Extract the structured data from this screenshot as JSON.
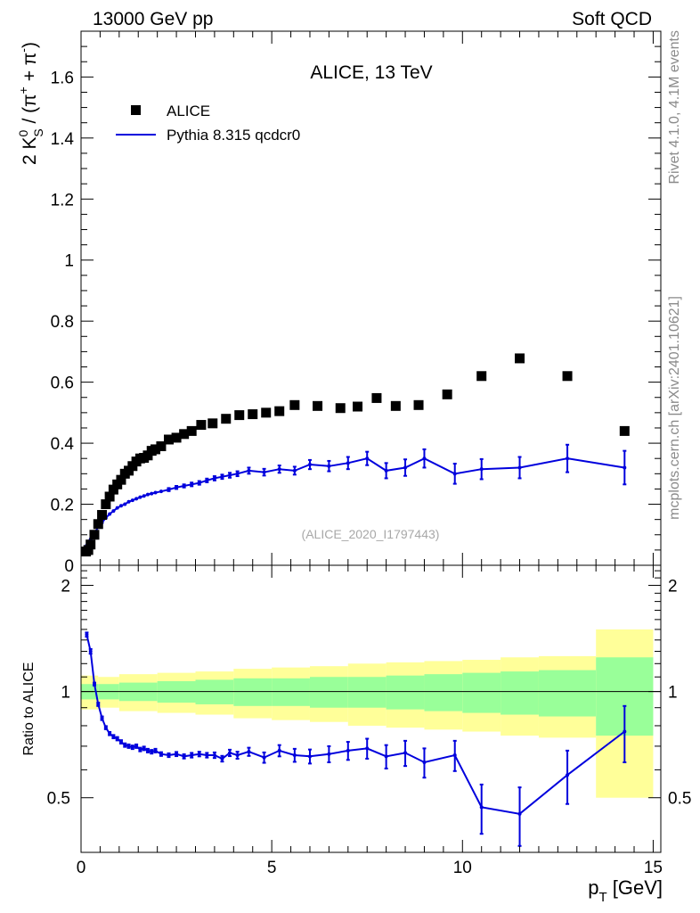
{
  "header": {
    "left": "13000 GeV pp",
    "right": "Soft QCD"
  },
  "side_labels": {
    "rivet": "Rivet 4.1.0,  4.1M events",
    "mcplots": "mcplots.cern.ch [arXiv:2401.10621]"
  },
  "chart_data": {
    "type": "scatter",
    "title": "ALICE, 13 TeV",
    "analysis_id": "(ALICE_2020_I1797443)",
    "ylabel_parts": [
      "2 K",
      "0",
      "S",
      " / (π",
      "+",
      " + π",
      "-",
      ")"
    ],
    "xlabel_parts": [
      "p",
      "T",
      " [GeV]"
    ],
    "xlim": [
      0,
      15.2
    ],
    "ylim": [
      0,
      1.75
    ],
    "x_ticks": [
      0,
      5,
      10,
      15
    ],
    "y_ticks": [
      0,
      0.2,
      0.4,
      0.6,
      0.8,
      1,
      1.2,
      1.4,
      1.6
    ],
    "y_tick_labels": [
      "0",
      "0.2",
      "0.4",
      "0.6",
      "0.8",
      "1",
      "1.2",
      "1.4",
      "1.6"
    ],
    "legend": [
      {
        "label": "ALICE",
        "color": "#000000",
        "marker": "square"
      },
      {
        "label": "Pythia 8.315 qcdcr0",
        "color": "#0000dd",
        "marker": "line"
      }
    ],
    "data_x": [
      0.13,
      0.19,
      0.25,
      0.35,
      0.45,
      0.55,
      0.65,
      0.75,
      0.85,
      0.95,
      1.05,
      1.15,
      1.25,
      1.35,
      1.45,
      1.55,
      1.65,
      1.75,
      1.85,
      1.95,
      2.1,
      2.3,
      2.5,
      2.7,
      2.9,
      3.15,
      3.45,
      3.8,
      4.15,
      4.5,
      4.85,
      5.2,
      5.6,
      6.2,
      6.8,
      7.25,
      7.75,
      8.25,
      8.85,
      9.6,
      10.5,
      11.5,
      12.75,
      14.25
    ],
    "data_y": [
      0.045,
      0.05,
      0.068,
      0.1,
      0.135,
      0.165,
      0.2,
      0.225,
      0.248,
      0.265,
      0.28,
      0.3,
      0.31,
      0.325,
      0.34,
      0.35,
      0.352,
      0.36,
      0.375,
      0.38,
      0.39,
      0.412,
      0.418,
      0.43,
      0.44,
      0.46,
      0.465,
      0.48,
      0.492,
      0.495,
      0.5,
      0.505,
      0.525,
      0.522,
      0.515,
      0.52,
      0.548,
      0.522,
      0.525,
      0.56,
      0.62,
      0.678,
      0.62,
      0.44
    ],
    "mc_x": [
      0.15,
      0.25,
      0.35,
      0.45,
      0.55,
      0.65,
      0.75,
      0.85,
      0.95,
      1.05,
      1.15,
      1.25,
      1.35,
      1.45,
      1.55,
      1.65,
      1.75,
      1.85,
      1.95,
      2.1,
      2.3,
      2.5,
      2.7,
      2.9,
      3.1,
      3.3,
      3.5,
      3.7,
      3.9,
      4.1,
      4.4,
      4.8,
      5.2,
      5.6,
      6.0,
      6.5,
      7.0,
      7.5,
      8.0,
      8.5,
      9.0,
      9.8,
      10.5,
      11.5,
      12.75,
      14.25
    ],
    "mc_y": [
      0.065,
      0.085,
      0.105,
      0.125,
      0.14,
      0.155,
      0.168,
      0.178,
      0.188,
      0.195,
      0.2,
      0.208,
      0.213,
      0.218,
      0.223,
      0.227,
      0.232,
      0.235,
      0.238,
      0.242,
      0.248,
      0.255,
      0.26,
      0.265,
      0.27,
      0.278,
      0.285,
      0.29,
      0.295,
      0.3,
      0.31,
      0.305,
      0.315,
      0.31,
      0.33,
      0.325,
      0.335,
      0.35,
      0.31,
      0.32,
      0.35,
      0.3,
      0.315,
      0.32,
      0.35,
      0.32
    ],
    "mc_err": [
      0.003,
      0.003,
      0.003,
      0.003,
      0.003,
      0.003,
      0.003,
      0.003,
      0.003,
      0.003,
      0.003,
      0.003,
      0.003,
      0.003,
      0.003,
      0.004,
      0.004,
      0.004,
      0.004,
      0.004,
      0.005,
      0.005,
      0.005,
      0.006,
      0.006,
      0.006,
      0.007,
      0.007,
      0.008,
      0.008,
      0.01,
      0.011,
      0.012,
      0.013,
      0.015,
      0.017,
      0.02,
      0.022,
      0.025,
      0.027,
      0.03,
      0.033,
      0.033,
      0.035,
      0.045,
      0.055
    ],
    "ratio": {
      "ylabel": "Ratio to ALICE",
      "ylim": [
        0.35,
        2.28
      ],
      "y_ticks": [
        0.5,
        1,
        2
      ],
      "y_tick_labels": [
        "0.5",
        "1",
        "2"
      ],
      "bands": [
        {
          "x0": 0.0,
          "x1": 0.45,
          "inner": 0.05,
          "outer": 0.11
        },
        {
          "x0": 0.45,
          "x1": 1.0,
          "inner": 0.05,
          "outer": 0.1
        },
        {
          "x0": 1.0,
          "x1": 2.0,
          "inner": 0.06,
          "outer": 0.12
        },
        {
          "x0": 2.0,
          "x1": 3.0,
          "inner": 0.07,
          "outer": 0.13
        },
        {
          "x0": 3.0,
          "x1": 4.0,
          "inner": 0.08,
          "outer": 0.14
        },
        {
          "x0": 4.0,
          "x1": 5.0,
          "inner": 0.09,
          "outer": 0.16
        },
        {
          "x0": 5.0,
          "x1": 6.0,
          "inner": 0.09,
          "outer": 0.17
        },
        {
          "x0": 6.0,
          "x1": 7.0,
          "inner": 0.1,
          "outer": 0.18
        },
        {
          "x0": 7.0,
          "x1": 8.0,
          "inner": 0.1,
          "outer": 0.2
        },
        {
          "x0": 8.0,
          "x1": 9.0,
          "inner": 0.11,
          "outer": 0.21
        },
        {
          "x0": 9.0,
          "x1": 10.0,
          "inner": 0.12,
          "outer": 0.22
        },
        {
          "x0": 10.0,
          "x1": 11.0,
          "inner": 0.13,
          "outer": 0.23
        },
        {
          "x0": 11.0,
          "x1": 12.0,
          "inner": 0.14,
          "outer": 0.25
        },
        {
          "x0": 12.0,
          "x1": 13.5,
          "inner": 0.15,
          "outer": 0.26
        },
        {
          "x0": 13.5,
          "x1": 15.0,
          "inner": 0.25,
          "outer": 0.5
        }
      ],
      "mc_x": [
        0.15,
        0.25,
        0.35,
        0.45,
        0.55,
        0.65,
        0.75,
        0.85,
        0.95,
        1.05,
        1.15,
        1.25,
        1.35,
        1.45,
        1.55,
        1.65,
        1.75,
        1.85,
        1.95,
        2.1,
        2.3,
        2.5,
        2.7,
        2.9,
        3.1,
        3.3,
        3.5,
        3.7,
        3.9,
        4.1,
        4.4,
        4.8,
        5.2,
        5.6,
        6.0,
        6.5,
        7.0,
        7.5,
        8.0,
        8.5,
        9.0,
        9.8,
        10.5,
        11.5,
        12.75,
        14.25
      ],
      "mc_y": [
        1.45,
        1.3,
        1.05,
        0.92,
        0.84,
        0.79,
        0.76,
        0.745,
        0.735,
        0.72,
        0.705,
        0.7,
        0.695,
        0.7,
        0.685,
        0.69,
        0.68,
        0.675,
        0.68,
        0.665,
        0.66,
        0.665,
        0.655,
        0.66,
        0.665,
        0.66,
        0.66,
        0.645,
        0.67,
        0.66,
        0.675,
        0.65,
        0.68,
        0.66,
        0.655,
        0.665,
        0.68,
        0.69,
        0.655,
        0.67,
        0.63,
        0.66,
        0.47,
        0.45,
        0.58,
        0.77
      ],
      "mc_err": [
        0.02,
        0.02,
        0.01,
        0.01,
        0.01,
        0.008,
        0.008,
        0.008,
        0.008,
        0.008,
        0.008,
        0.008,
        0.008,
        0.008,
        0.008,
        0.008,
        0.008,
        0.008,
        0.008,
        0.008,
        0.008,
        0.009,
        0.009,
        0.01,
        0.01,
        0.01,
        0.012,
        0.012,
        0.014,
        0.015,
        0.018,
        0.022,
        0.025,
        0.028,
        0.03,
        0.035,
        0.04,
        0.045,
        0.05,
        0.055,
        0.06,
        0.065,
        0.075,
        0.085,
        0.1,
        0.14
      ]
    }
  }
}
